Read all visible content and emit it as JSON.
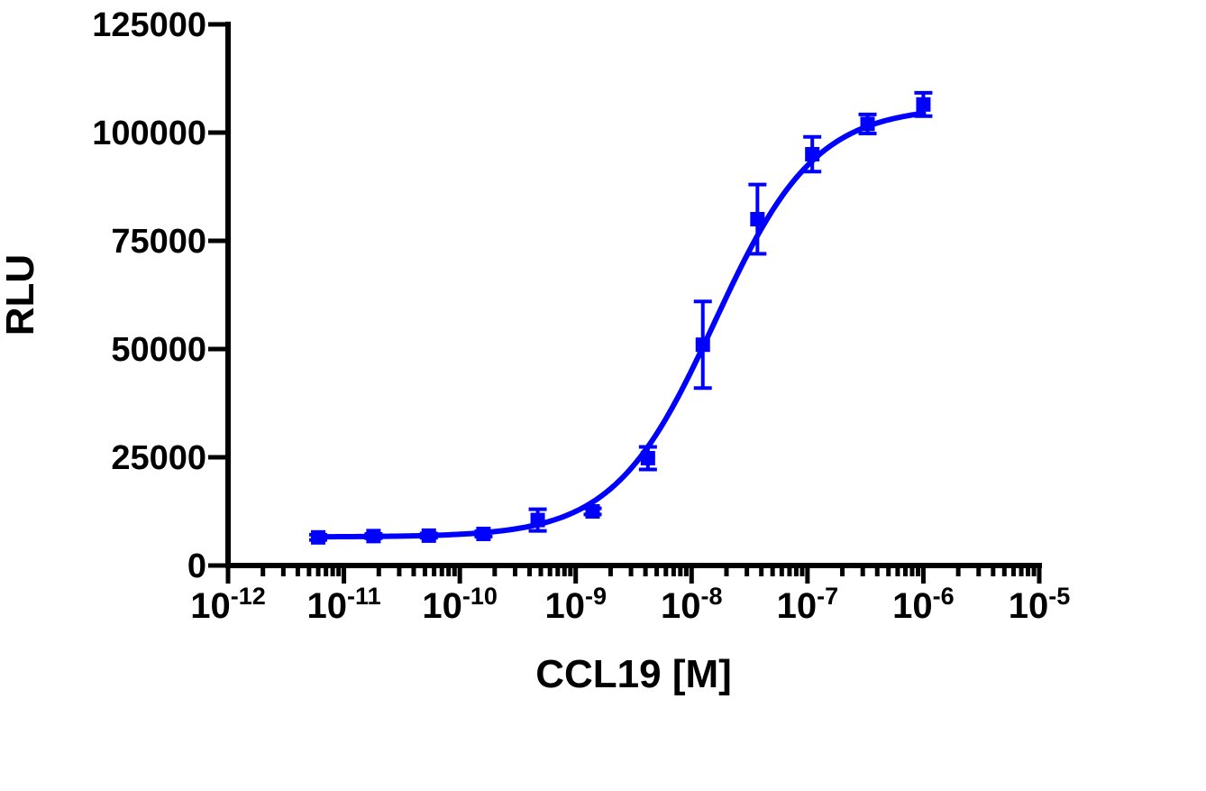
{
  "chart_data": {
    "type": "scatter",
    "title": "",
    "xlabel": "CCL19 [M]",
    "ylabel": "RLU",
    "x_scale": "log10",
    "xlim": [
      1e-12,
      1e-05
    ],
    "ylim": [
      0,
      125000
    ],
    "x_ticks": [
      {
        "base": "10",
        "exp": "-12"
      },
      {
        "base": "10",
        "exp": "-11"
      },
      {
        "base": "10",
        "exp": "-10"
      },
      {
        "base": "10",
        "exp": "-9"
      },
      {
        "base": "10",
        "exp": "-8"
      },
      {
        "base": "10",
        "exp": "-7"
      },
      {
        "base": "10",
        "exp": "-6"
      },
      {
        "base": "10",
        "exp": "-5"
      }
    ],
    "y_ticks": [
      "0",
      "25000",
      "50000",
      "75000",
      "100000",
      "125000"
    ],
    "y_tick_values": [
      0,
      25000,
      50000,
      75000,
      100000,
      125000
    ],
    "grid": false,
    "legend": "none",
    "color": "#0000ff",
    "series": [
      {
        "points": [
          {
            "x": 6e-12,
            "y": 6500,
            "err": 600
          },
          {
            "x": 1.8e-11,
            "y": 6800,
            "err": 500
          },
          {
            "x": 5.4e-11,
            "y": 6900,
            "err": 500
          },
          {
            "x": 1.6e-10,
            "y": 7300,
            "err": 600
          },
          {
            "x": 4.7e-10,
            "y": 10500,
            "err": 2500
          },
          {
            "x": 1.4e-09,
            "y": 12500,
            "err": 700
          },
          {
            "x": 4.2e-09,
            "y": 24800,
            "err": 2600
          },
          {
            "x": 1.25e-08,
            "y": 51000,
            "err": 10000
          },
          {
            "x": 3.7e-08,
            "y": 80000,
            "err": 8000
          },
          {
            "x": 1.1e-07,
            "y": 95000,
            "err": 4000
          },
          {
            "x": 3.3e-07,
            "y": 102000,
            "err": 2200
          },
          {
            "x": 1e-06,
            "y": 106500,
            "err": 2700
          }
        ],
        "fit": {
          "model": "sigmoidal dose-response",
          "bottom": 6600,
          "top": 106000,
          "log_ec50": -7.8,
          "hill_slope": 1.0
        }
      }
    ]
  }
}
